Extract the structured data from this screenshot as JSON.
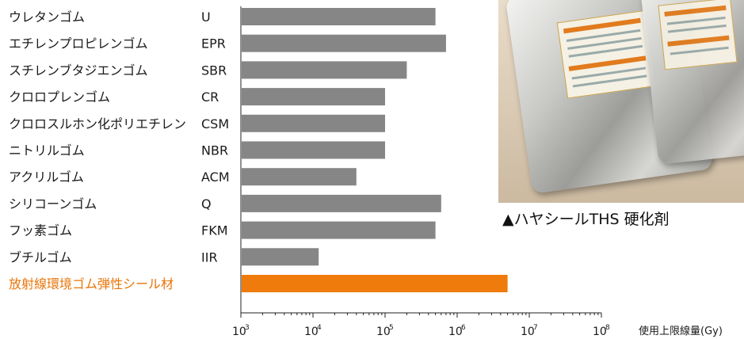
{
  "chart_data": {
    "type": "bar",
    "orientation": "horizontal",
    "categories": [
      {
        "name": "ウレタンゴム",
        "abbr": "U"
      },
      {
        "name": "エチレンプロピレンゴム",
        "abbr": "EPR"
      },
      {
        "name": "スチレンブタジエンゴム",
        "abbr": "SBR"
      },
      {
        "name": "クロロプレンゴム",
        "abbr": "CR"
      },
      {
        "name": "クロロスルホン化ポリエチレン",
        "abbr": "CSM"
      },
      {
        "name": "ニトリルゴム",
        "abbr": "NBR"
      },
      {
        "name": "アクリルゴム",
        "abbr": "ACM"
      },
      {
        "name": "シリコーンゴム",
        "abbr": "Q"
      },
      {
        "name": "フッ素ゴム",
        "abbr": "FKM"
      },
      {
        "name": "ブチルゴム",
        "abbr": "IIR"
      },
      {
        "name": "放射線環境ゴム弾性シール材",
        "abbr": ""
      }
    ],
    "values": [
      500000,
      700000,
      200000,
      100000,
      100000,
      100000,
      40000,
      600000,
      500000,
      12000,
      5000000
    ],
    "highlight_index": 10,
    "xscale": "log",
    "xlim": [
      1000,
      100000000
    ],
    "ticks": [
      {
        "base": "10",
        "exp": "3"
      },
      {
        "base": "10",
        "exp": "4"
      },
      {
        "base": "10",
        "exp": "5"
      },
      {
        "base": "10",
        "exp": "6"
      },
      {
        "base": "10",
        "exp": "7"
      },
      {
        "base": "10",
        "exp": "8"
      }
    ],
    "xlabel": "使用上限線量(Gy)",
    "colors": {
      "bar": "#868686",
      "highlight": "#ee7b0c",
      "highlight_text": "#e8750a"
    }
  },
  "photo": {
    "caption": "▲ハヤシールTHS 硬化剤"
  }
}
